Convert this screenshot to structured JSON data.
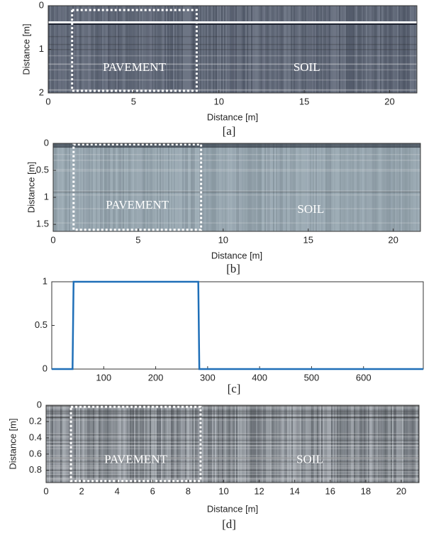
{
  "chart_data": [
    {
      "type": "image",
      "caption": "[a]",
      "xlabel": "Distance [m]",
      "ylabel": "Distance [m]",
      "xlim": [
        0,
        21.6
      ],
      "ylim": [
        0,
        2
      ],
      "y_inverted": true,
      "xticks": [
        0,
        5,
        10,
        15,
        20
      ],
      "yticks": [
        0,
        1,
        2
      ],
      "annotations": [
        "PAVEMENT",
        "SOIL"
      ],
      "region": {
        "xlim": [
          1.4,
          8.7
        ],
        "ylim": [
          0.1,
          1.95
        ]
      }
    },
    {
      "type": "image",
      "caption": "[b]",
      "xlabel": "Distance [m]",
      "ylabel": "Distance [m]",
      "xlim": [
        0,
        21.6
      ],
      "ylim": [
        0,
        1.63
      ],
      "y_inverted": true,
      "xticks": [
        0,
        5,
        10,
        15,
        20
      ],
      "yticks": [
        0,
        0.5,
        1,
        1.5
      ],
      "annotations": [
        "PAVEMENT",
        "SOIL"
      ],
      "region": {
        "xlim": [
          1.2,
          8.7
        ],
        "ylim": [
          0.02,
          1.6
        ]
      }
    },
    {
      "type": "line",
      "caption": "[c]",
      "xlim": [
        0,
        715
      ],
      "ylim": [
        0,
        1
      ],
      "xticks": [
        100,
        200,
        300,
        400,
        500,
        600
      ],
      "yticks": [
        0,
        0.5,
        1
      ],
      "series": [
        {
          "color": "#1f6fb8",
          "x": [
            0,
            40,
            42,
            282,
            284,
            715
          ],
          "values": [
            0,
            0,
            1,
            1,
            0,
            0
          ]
        }
      ]
    },
    {
      "type": "image",
      "caption": "[d]",
      "xlabel": "Distance [m]",
      "ylabel": "Distance [m]",
      "xlim": [
        0,
        21.0
      ],
      "ylim": [
        0,
        0.95
      ],
      "y_inverted": true,
      "xticks": [
        0,
        2,
        4,
        6,
        8,
        10,
        12,
        14,
        16,
        18,
        20
      ],
      "yticks": [
        0,
        0.2,
        0.4,
        0.6,
        0.8
      ],
      "annotations": [
        "PAVEMENT",
        "SOIL"
      ],
      "region": {
        "xlim": [
          1.4,
          8.7
        ],
        "ylim": [
          0.02,
          0.93
        ]
      }
    }
  ]
}
